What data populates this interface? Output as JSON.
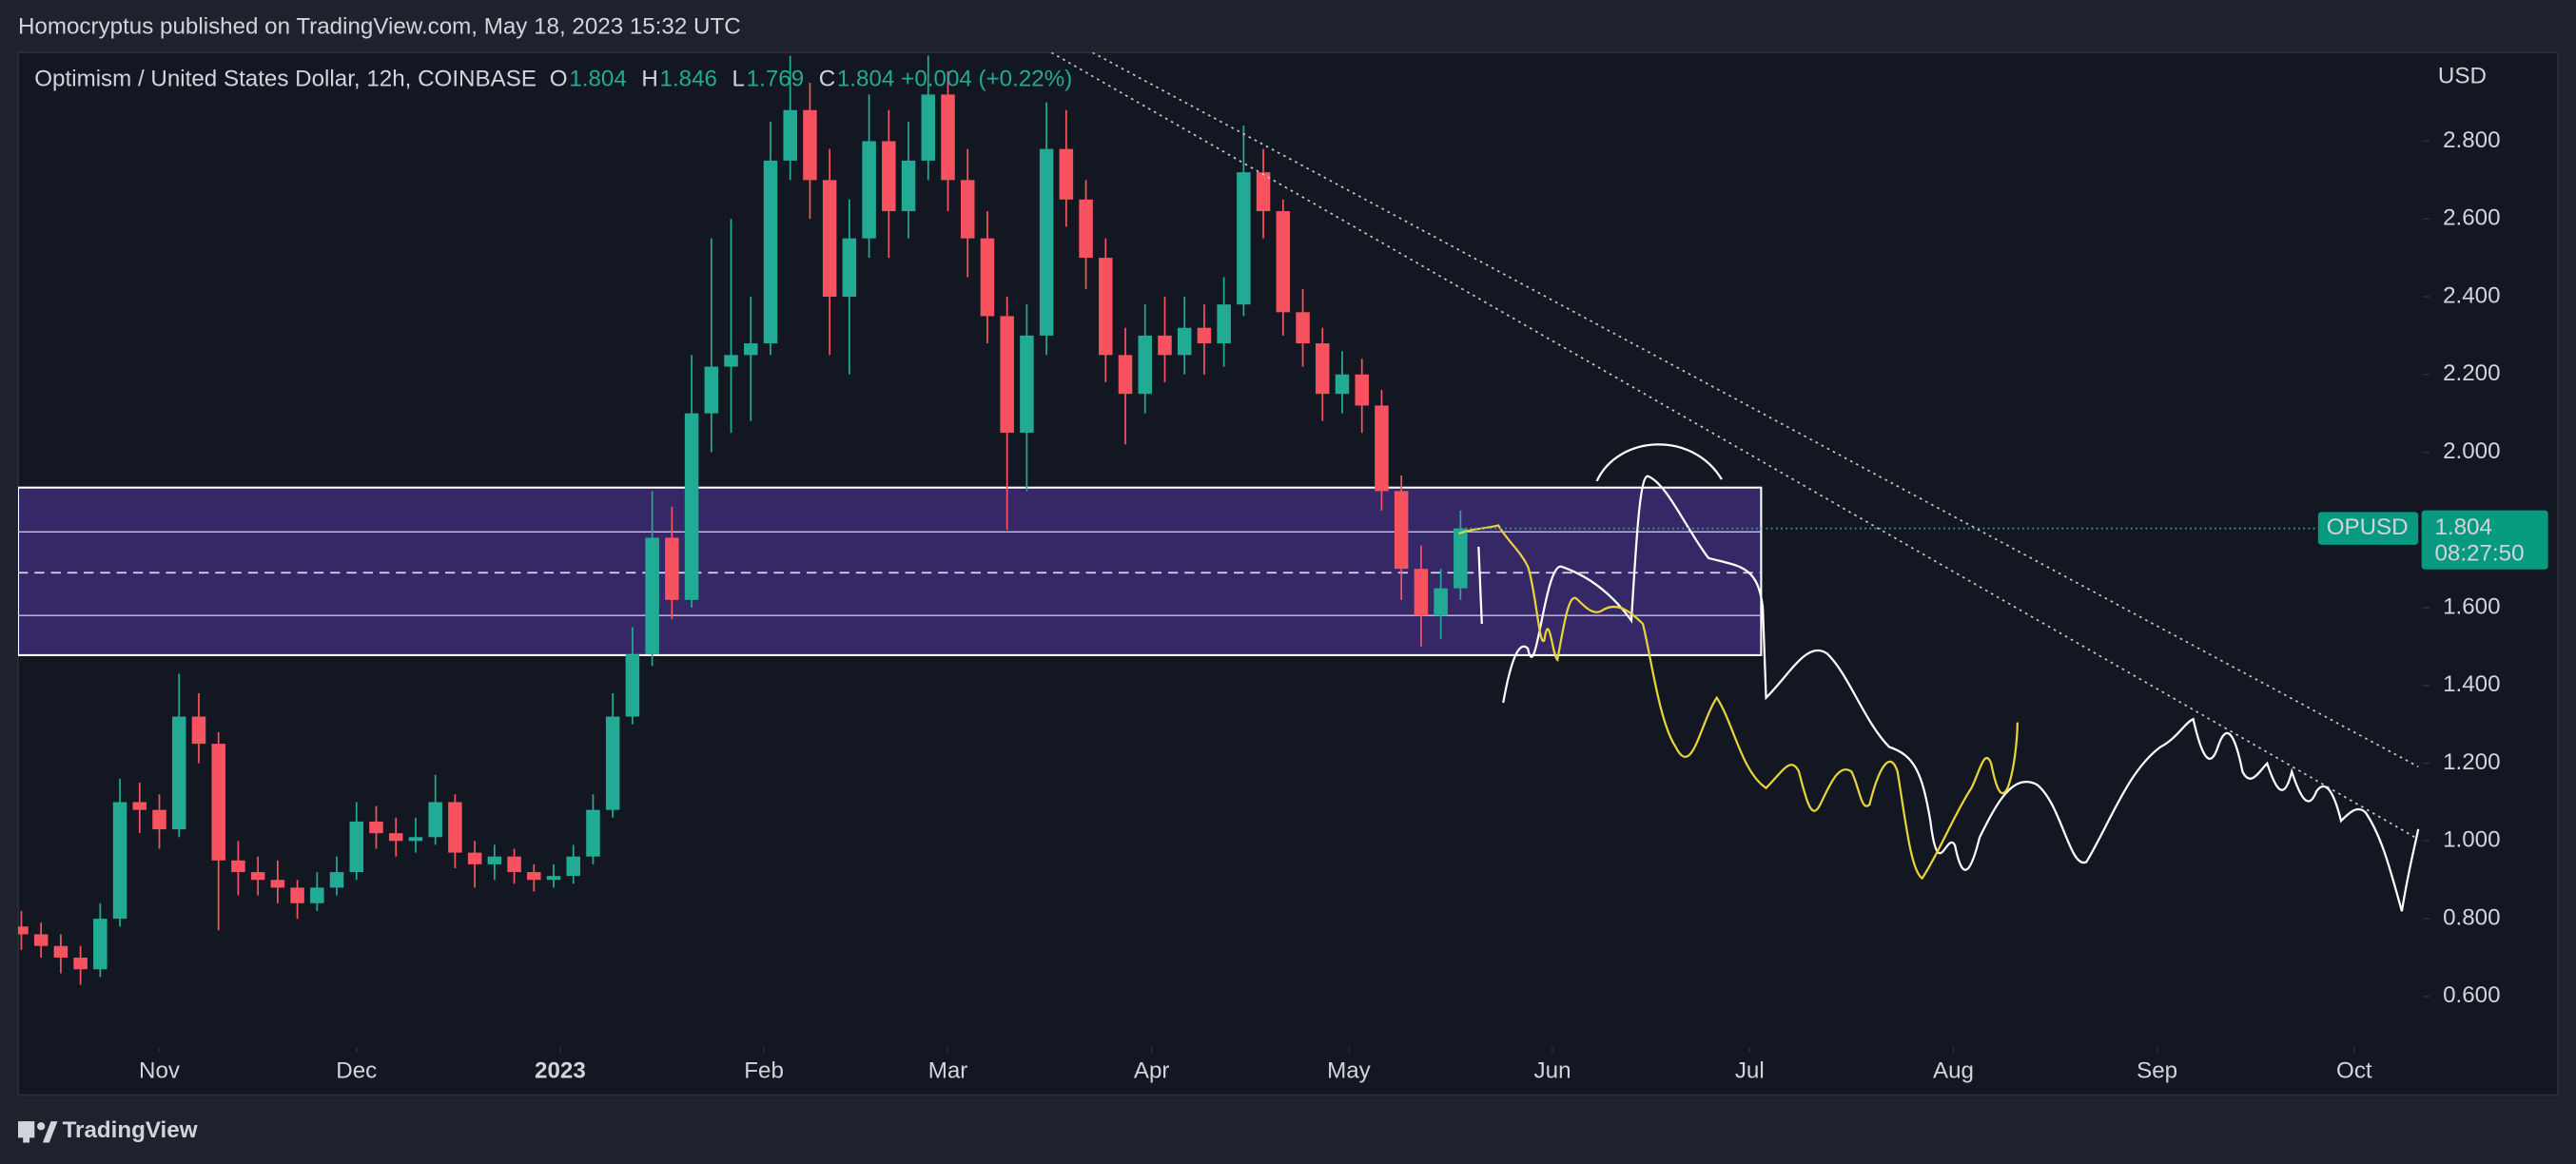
{
  "header": {
    "publisher": "Homocryptus published on TradingView.com, May 18, 2023 15:32 UTC"
  },
  "footer": {
    "brand": "TradingView"
  },
  "chart_data": {
    "type": "candlestick",
    "title": "Optimism / United States Dollar, 12h, COINBASE",
    "ohlc_legend": {
      "labels": [
        "O",
        "H",
        "L",
        "C"
      ],
      "values": [
        1.804,
        1.846,
        1.769,
        1.804
      ],
      "change": "+0.004 (+0.22%)"
    },
    "y_axis_label": "USD",
    "symbol": "OPUSD",
    "last_price": {
      "value": 1.804,
      "label": "1.804"
    },
    "countdown": "08:27:50",
    "up_color": "#22ab94",
    "down_color": "#f7525f",
    "grid": false,
    "xlim": [
      9.5,
      375.5
    ],
    "ylim": [
      0.469,
      3.028
    ],
    "xticks": [
      {
        "value": 31,
        "label": "Nov"
      },
      {
        "value": 61,
        "label": "Dec"
      },
      {
        "value": 92,
        "label": "2023"
      },
      {
        "value": 123,
        "label": "Feb"
      },
      {
        "value": 151,
        "label": "Mar"
      },
      {
        "value": 182,
        "label": "Apr"
      },
      {
        "value": 212,
        "label": "May"
      },
      {
        "value": 243,
        "label": "Jun"
      },
      {
        "value": 273,
        "label": "Jul"
      },
      {
        "value": 304,
        "label": "Aug"
      },
      {
        "value": 335,
        "label": "Sep"
      },
      {
        "value": 365,
        "label": "Oct"
      }
    ],
    "yticks": [
      {
        "value": 0.6,
        "label": "0.600"
      },
      {
        "value": 0.8,
        "label": "0.800"
      },
      {
        "value": 1,
        "label": "1.000"
      },
      {
        "value": 1.2,
        "label": "1.200"
      },
      {
        "value": 1.4,
        "label": "1.400"
      },
      {
        "value": 1.6,
        "label": "1.600"
      },
      {
        "value": 1.8,
        "label": "1.800"
      },
      {
        "value": 2,
        "label": "2.000"
      },
      {
        "value": 2.2,
        "label": "2.200"
      },
      {
        "value": 2.4,
        "label": "2.400"
      },
      {
        "value": 2.6,
        "label": "2.600"
      },
      {
        "value": 2.8,
        "label": "2.800"
      }
    ],
    "zone": {
      "ylim": [
        1.478,
        1.909
      ],
      "x_end": 274.75,
      "levels": [
        1.795,
        1.58
      ],
      "mid_level": 1.69,
      "color": "#3b2a6e"
    },
    "x": [
      10,
      13,
      16,
      19,
      22,
      25,
      28,
      31,
      34,
      37,
      40,
      43,
      46,
      49,
      52,
      55,
      58,
      61,
      64,
      67,
      70,
      73,
      76,
      79,
      82,
      85,
      88,
      91,
      94,
      97,
      100,
      103,
      106,
      109,
      112,
      115,
      118,
      121,
      124,
      127,
      130,
      133,
      136,
      139,
      142,
      145,
      148,
      151,
      154,
      157,
      160,
      163,
      166,
      169,
      172,
      175,
      178,
      181,
      184,
      187,
      190,
      193,
      196,
      199,
      202,
      205,
      208,
      211,
      214,
      217,
      220,
      223,
      226,
      229
    ],
    "open": [
      0.78,
      0.76,
      0.73,
      0.7,
      0.67,
      0.8,
      1.1,
      1.08,
      1.03,
      1.32,
      1.25,
      0.95,
      0.92,
      0.9,
      0.88,
      0.84,
      0.88,
      0.92,
      1.05,
      1.02,
      1.0,
      1.01,
      1.1,
      0.97,
      0.94,
      0.96,
      0.92,
      0.9,
      0.91,
      0.96,
      1.08,
      1.32,
      1.48,
      1.78,
      1.62,
      2.1,
      2.22,
      2.25,
      2.28,
      2.75,
      2.88,
      2.7,
      2.4,
      2.55,
      2.8,
      2.62,
      2.75,
      2.92,
      2.7,
      2.55,
      2.35,
      2.05,
      2.3,
      2.78,
      2.65,
      2.5,
      2.25,
      2.15,
      2.3,
      2.25,
      2.32,
      2.28,
      2.38,
      2.72,
      2.62,
      2.36,
      2.28,
      2.15,
      2.2,
      2.12,
      1.9,
      1.7,
      1.58,
      1.65
    ],
    "high": [
      0.82,
      0.79,
      0.76,
      0.73,
      0.84,
      1.16,
      1.15,
      1.12,
      1.43,
      1.38,
      1.28,
      1.0,
      0.96,
      0.95,
      0.9,
      0.92,
      0.96,
      1.1,
      1.09,
      1.06,
      1.06,
      1.17,
      1.12,
      1.0,
      0.99,
      0.98,
      0.94,
      0.94,
      0.99,
      1.12,
      1.38,
      1.55,
      1.9,
      1.86,
      2.25,
      2.55,
      2.6,
      2.4,
      2.85,
      3.02,
      2.95,
      2.78,
      2.65,
      2.92,
      2.88,
      2.85,
      3.02,
      2.98,
      2.78,
      2.62,
      2.4,
      2.38,
      2.9,
      2.88,
      2.7,
      2.55,
      2.32,
      2.38,
      2.4,
      2.4,
      2.38,
      2.45,
      2.84,
      2.78,
      2.65,
      2.42,
      2.32,
      2.26,
      2.24,
      2.16,
      1.94,
      1.76,
      1.7,
      1.85
    ],
    "low": [
      0.72,
      0.7,
      0.66,
      0.63,
      0.65,
      0.78,
      1.02,
      0.98,
      1.01,
      1.2,
      0.77,
      0.86,
      0.86,
      0.84,
      0.8,
      0.82,
      0.86,
      0.9,
      0.98,
      0.96,
      0.97,
      0.99,
      0.93,
      0.88,
      0.9,
      0.89,
      0.87,
      0.88,
      0.89,
      0.94,
      1.06,
      1.3,
      1.45,
      1.57,
      1.6,
      2.0,
      2.05,
      2.08,
      2.25,
      2.7,
      2.6,
      2.25,
      2.2,
      2.5,
      2.5,
      2.55,
      2.7,
      2.62,
      2.45,
      2.28,
      1.8,
      1.9,
      2.25,
      2.58,
      2.42,
      2.18,
      2.02,
      2.1,
      2.18,
      2.2,
      2.2,
      2.22,
      2.35,
      2.55,
      2.3,
      2.22,
      2.08,
      2.1,
      2.05,
      1.85,
      1.62,
      1.5,
      1.52,
      1.62
    ],
    "close": [
      0.76,
      0.73,
      0.7,
      0.67,
      0.8,
      1.1,
      1.08,
      1.03,
      1.32,
      1.25,
      0.95,
      0.92,
      0.9,
      0.88,
      0.84,
      0.88,
      0.92,
      1.05,
      1.02,
      1.0,
      1.01,
      1.1,
      0.97,
      0.94,
      0.96,
      0.92,
      0.9,
      0.91,
      0.96,
      1.08,
      1.32,
      1.48,
      1.78,
      1.62,
      2.1,
      2.22,
      2.25,
      2.28,
      2.75,
      2.88,
      2.7,
      2.4,
      2.55,
      2.8,
      2.62,
      2.75,
      2.92,
      2.7,
      2.55,
      2.35,
      2.05,
      2.3,
      2.78,
      2.65,
      2.5,
      2.25,
      2.15,
      2.3,
      2.25,
      2.32,
      2.28,
      2.38,
      2.72,
      2.62,
      2.36,
      2.28,
      2.15,
      2.2,
      2.12,
      1.9,
      1.7,
      1.58,
      1.65,
      1.804
    ]
  }
}
